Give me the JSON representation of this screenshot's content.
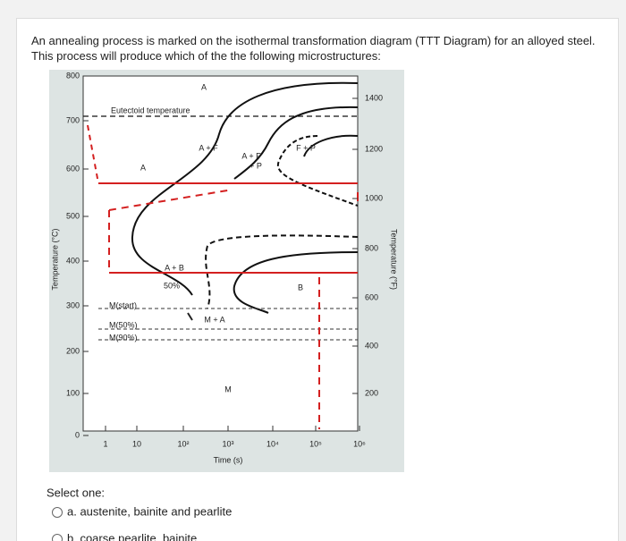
{
  "question": {
    "text": "An annealing process is marked on the isothermal transformation diagram (TTT Diagram) for an alloyed steel. This process will produce which of the the following microstructures:"
  },
  "diagram": {
    "left_ticks": [
      "800",
      "700",
      "600",
      "500",
      "400",
      "300",
      "200",
      "100",
      "0"
    ],
    "right_ticks": [
      "1400",
      "1200",
      "1000",
      "800",
      "600",
      "400",
      "200"
    ],
    "x_ticks": [
      "1",
      "10",
      "10²",
      "10³",
      "10⁴",
      "10⁵",
      "10⁶"
    ],
    "x_label": "Time (s)",
    "left_label": "Temperature (°C)",
    "right_label": "Temperature (°F)",
    "regions": [
      "A",
      "Eutectoid temperature",
      "A + F",
      "A + F",
      "+ P",
      "F + P",
      "A",
      "A + B",
      "50%",
      "B",
      "M(start)",
      "M(50%)",
      "M(90%)",
      "M + A",
      "M"
    ]
  },
  "answers": {
    "prompt": "Select one:",
    "options": [
      "a. austenite, bainite and pearlite",
      "b. coarse pearlite, bainite"
    ]
  }
}
